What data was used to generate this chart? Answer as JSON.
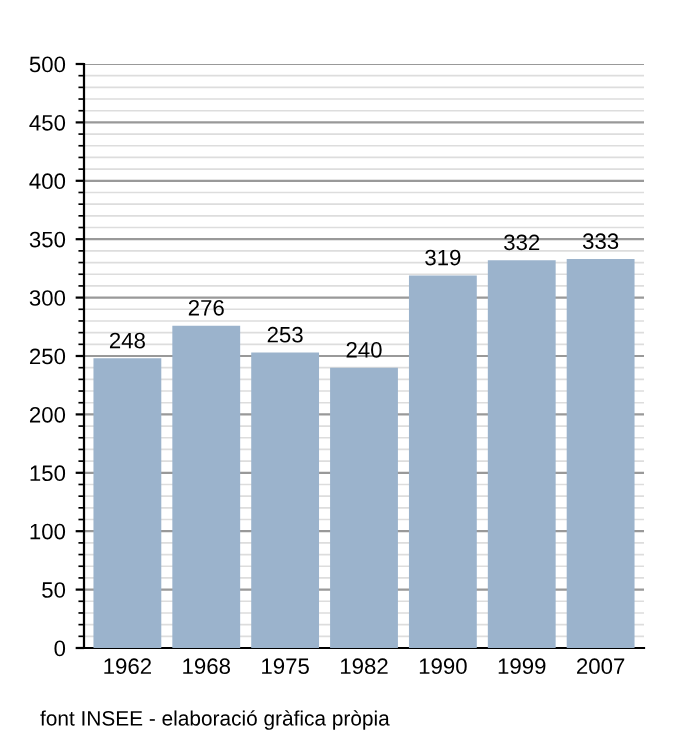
{
  "chart_data": {
    "type": "bar",
    "categories": [
      "1962",
      "1968",
      "1975",
      "1982",
      "1990",
      "1999",
      "2007"
    ],
    "values": [
      248,
      276,
      253,
      240,
      319,
      332,
      333
    ],
    "color": "#9bb3cc",
    "ylim": [
      0,
      500
    ],
    "yticks": [
      0,
      50,
      100,
      150,
      200,
      250,
      300,
      350,
      400,
      450,
      500
    ],
    "grid": "y",
    "data_labels": true,
    "annotations": [
      "font INSEE - elaboració gràfica pròpia"
    ]
  }
}
